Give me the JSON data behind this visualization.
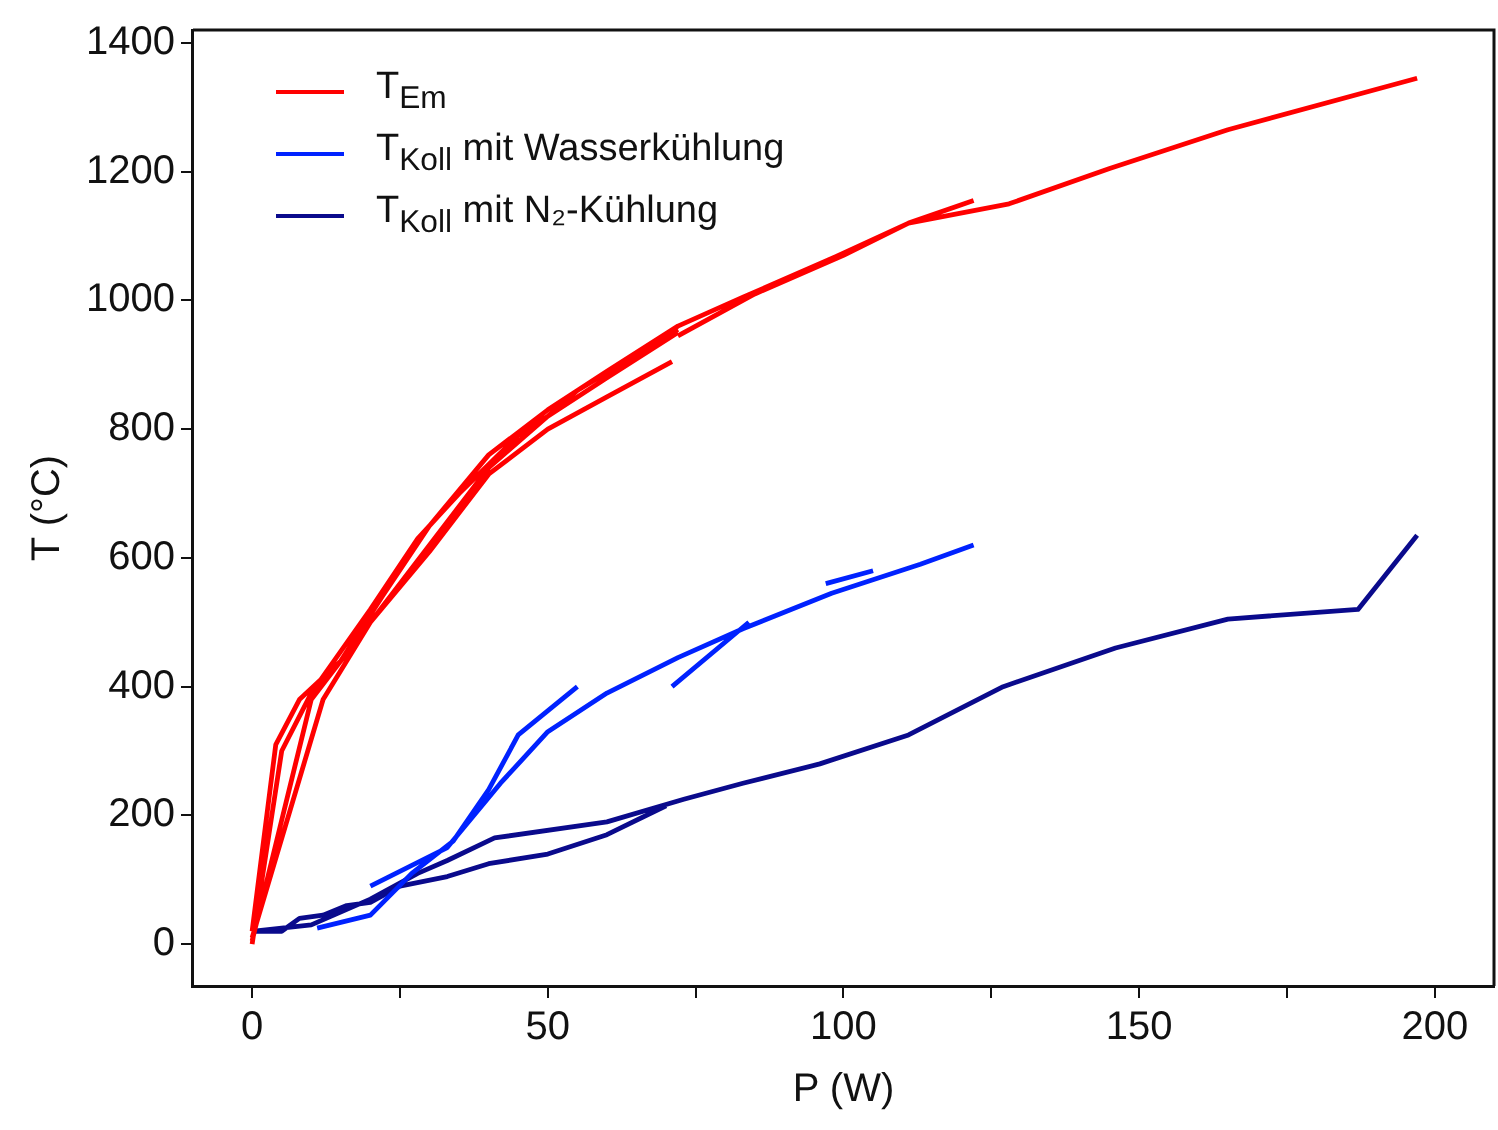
{
  "chart_data": {
    "type": "line",
    "xlabel": "P (W)",
    "ylabel": "T (°C)",
    "xlim": [
      -10,
      210
    ],
    "xticks": [
      0,
      {
        "value": 25,
        "label": null
      },
      50,
      {
        "value": 75,
        "label": null
      },
      100,
      {
        "value": 125,
        "label": null
      },
      150,
      {
        "value": 175,
        "label": null
      },
      200
    ],
    "ylim": [
      -65,
      1420
    ],
    "yticks": [
      0,
      200,
      400,
      600,
      800,
      1000,
      1200,
      1400
    ],
    "grid": false,
    "legend": "top left",
    "marker": "none",
    "line_style": "solid",
    "series": [
      {
        "name": "T$_{Em}$",
        "color": "#ff0000",
        "x": [
          0,
          4,
          8,
          15,
          22,
          30,
          40,
          50,
          60,
          72,
          83,
          98,
          111,
          128,
          145,
          165,
          197,
          null,
          0,
          5,
          10,
          20,
          28,
          35,
          45,
          60,
          72,
          null,
          0,
          12,
          20,
          30,
          40,
          50,
          60,
          71,
          null,
          0,
          10,
          25,
          40,
          55,
          72,
          null,
          72,
          85,
          100,
          111,
          122
        ],
        "values": [
          20,
          310,
          380,
          440,
          540,
          650,
          760,
          830,
          890,
          960,
          1005,
          1065,
          1120,
          1150,
          1205,
          1265,
          1345,
          null,
          0,
          300,
          390,
          520,
          630,
          700,
          790,
          880,
          950,
          null,
          10,
          380,
          500,
          610,
          730,
          800,
          850,
          905,
          null,
          5,
          380,
          560,
          740,
          860,
          955,
          null,
          945,
          1010,
          1070,
          1120,
          1155
        ]
      },
      {
        "name": "T$_{Koll}$ mit Wasserkühlung",
        "color": "#0022ff",
        "x": [
          20,
          33,
          42,
          50,
          60,
          72,
          83,
          98,
          113,
          122,
          null,
          11,
          20,
          27,
          34,
          40,
          45,
          55,
          null,
          71,
          84,
          null,
          97,
          105
        ],
        "values": [
          90,
          150,
          250,
          330,
          390,
          445,
          490,
          545,
          590,
          620,
          null,
          25,
          45,
          110,
          160,
          240,
          325,
          400,
          null,
          400,
          500,
          null,
          560,
          580
        ]
      },
      {
        "name": "T$_{Koll}$ mit N₂-Kühlung",
        "color": "#0a0a8c",
        "x": [
          0,
          10,
          20,
          28,
          33,
          41,
          60,
          73,
          83,
          96,
          111,
          127,
          146,
          165,
          187,
          197,
          null,
          0,
          5,
          8,
          12,
          16,
          20,
          25,
          33,
          40,
          50,
          60,
          70
        ],
        "values": [
          20,
          30,
          70,
          110,
          130,
          165,
          190,
          225,
          250,
          280,
          325,
          400,
          460,
          505,
          520,
          635,
          null,
          20,
          20,
          40,
          45,
          60,
          65,
          90,
          105,
          125,
          140,
          170,
          215
        ]
      }
    ]
  }
}
